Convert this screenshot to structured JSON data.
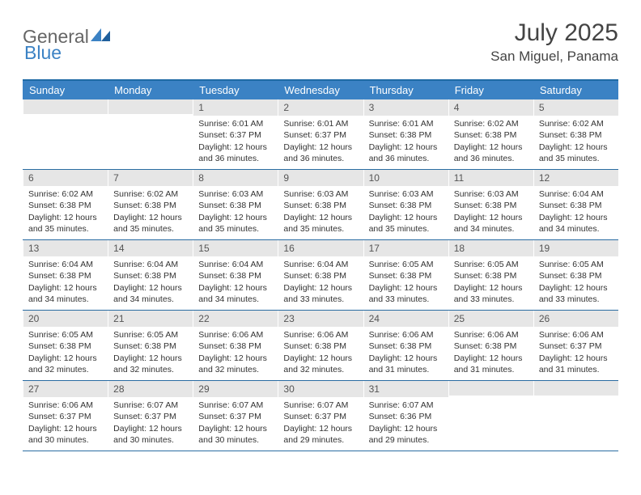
{
  "logo": {
    "word1": "General",
    "word2": "Blue"
  },
  "header": {
    "title": "July 2025",
    "location": "San Miguel, Panama"
  },
  "colors": {
    "brand_blue": "#3b82c4",
    "header_rule": "#1f6aa5",
    "row_divider": "#2a6ca2",
    "daynum_bg": "#e6e6e6",
    "text": "#333333",
    "title_text": "#444444"
  },
  "calendar": {
    "days_of_week": [
      "Sunday",
      "Monday",
      "Tuesday",
      "Wednesday",
      "Thursday",
      "Friday",
      "Saturday"
    ],
    "weeks": [
      [
        null,
        null,
        {
          "n": "1",
          "sunrise": "Sunrise: 6:01 AM",
          "sunset": "Sunset: 6:37 PM",
          "daylight": "Daylight: 12 hours and 36 minutes."
        },
        {
          "n": "2",
          "sunrise": "Sunrise: 6:01 AM",
          "sunset": "Sunset: 6:37 PM",
          "daylight": "Daylight: 12 hours and 36 minutes."
        },
        {
          "n": "3",
          "sunrise": "Sunrise: 6:01 AM",
          "sunset": "Sunset: 6:38 PM",
          "daylight": "Daylight: 12 hours and 36 minutes."
        },
        {
          "n": "4",
          "sunrise": "Sunrise: 6:02 AM",
          "sunset": "Sunset: 6:38 PM",
          "daylight": "Daylight: 12 hours and 36 minutes."
        },
        {
          "n": "5",
          "sunrise": "Sunrise: 6:02 AM",
          "sunset": "Sunset: 6:38 PM",
          "daylight": "Daylight: 12 hours and 35 minutes."
        }
      ],
      [
        {
          "n": "6",
          "sunrise": "Sunrise: 6:02 AM",
          "sunset": "Sunset: 6:38 PM",
          "daylight": "Daylight: 12 hours and 35 minutes."
        },
        {
          "n": "7",
          "sunrise": "Sunrise: 6:02 AM",
          "sunset": "Sunset: 6:38 PM",
          "daylight": "Daylight: 12 hours and 35 minutes."
        },
        {
          "n": "8",
          "sunrise": "Sunrise: 6:03 AM",
          "sunset": "Sunset: 6:38 PM",
          "daylight": "Daylight: 12 hours and 35 minutes."
        },
        {
          "n": "9",
          "sunrise": "Sunrise: 6:03 AM",
          "sunset": "Sunset: 6:38 PM",
          "daylight": "Daylight: 12 hours and 35 minutes."
        },
        {
          "n": "10",
          "sunrise": "Sunrise: 6:03 AM",
          "sunset": "Sunset: 6:38 PM",
          "daylight": "Daylight: 12 hours and 35 minutes."
        },
        {
          "n": "11",
          "sunrise": "Sunrise: 6:03 AM",
          "sunset": "Sunset: 6:38 PM",
          "daylight": "Daylight: 12 hours and 34 minutes."
        },
        {
          "n": "12",
          "sunrise": "Sunrise: 6:04 AM",
          "sunset": "Sunset: 6:38 PM",
          "daylight": "Daylight: 12 hours and 34 minutes."
        }
      ],
      [
        {
          "n": "13",
          "sunrise": "Sunrise: 6:04 AM",
          "sunset": "Sunset: 6:38 PM",
          "daylight": "Daylight: 12 hours and 34 minutes."
        },
        {
          "n": "14",
          "sunrise": "Sunrise: 6:04 AM",
          "sunset": "Sunset: 6:38 PM",
          "daylight": "Daylight: 12 hours and 34 minutes."
        },
        {
          "n": "15",
          "sunrise": "Sunrise: 6:04 AM",
          "sunset": "Sunset: 6:38 PM",
          "daylight": "Daylight: 12 hours and 34 minutes."
        },
        {
          "n": "16",
          "sunrise": "Sunrise: 6:04 AM",
          "sunset": "Sunset: 6:38 PM",
          "daylight": "Daylight: 12 hours and 33 minutes."
        },
        {
          "n": "17",
          "sunrise": "Sunrise: 6:05 AM",
          "sunset": "Sunset: 6:38 PM",
          "daylight": "Daylight: 12 hours and 33 minutes."
        },
        {
          "n": "18",
          "sunrise": "Sunrise: 6:05 AM",
          "sunset": "Sunset: 6:38 PM",
          "daylight": "Daylight: 12 hours and 33 minutes."
        },
        {
          "n": "19",
          "sunrise": "Sunrise: 6:05 AM",
          "sunset": "Sunset: 6:38 PM",
          "daylight": "Daylight: 12 hours and 33 minutes."
        }
      ],
      [
        {
          "n": "20",
          "sunrise": "Sunrise: 6:05 AM",
          "sunset": "Sunset: 6:38 PM",
          "daylight": "Daylight: 12 hours and 32 minutes."
        },
        {
          "n": "21",
          "sunrise": "Sunrise: 6:05 AM",
          "sunset": "Sunset: 6:38 PM",
          "daylight": "Daylight: 12 hours and 32 minutes."
        },
        {
          "n": "22",
          "sunrise": "Sunrise: 6:06 AM",
          "sunset": "Sunset: 6:38 PM",
          "daylight": "Daylight: 12 hours and 32 minutes."
        },
        {
          "n": "23",
          "sunrise": "Sunrise: 6:06 AM",
          "sunset": "Sunset: 6:38 PM",
          "daylight": "Daylight: 12 hours and 32 minutes."
        },
        {
          "n": "24",
          "sunrise": "Sunrise: 6:06 AM",
          "sunset": "Sunset: 6:38 PM",
          "daylight": "Daylight: 12 hours and 31 minutes."
        },
        {
          "n": "25",
          "sunrise": "Sunrise: 6:06 AM",
          "sunset": "Sunset: 6:38 PM",
          "daylight": "Daylight: 12 hours and 31 minutes."
        },
        {
          "n": "26",
          "sunrise": "Sunrise: 6:06 AM",
          "sunset": "Sunset: 6:37 PM",
          "daylight": "Daylight: 12 hours and 31 minutes."
        }
      ],
      [
        {
          "n": "27",
          "sunrise": "Sunrise: 6:06 AM",
          "sunset": "Sunset: 6:37 PM",
          "daylight": "Daylight: 12 hours and 30 minutes."
        },
        {
          "n": "28",
          "sunrise": "Sunrise: 6:07 AM",
          "sunset": "Sunset: 6:37 PM",
          "daylight": "Daylight: 12 hours and 30 minutes."
        },
        {
          "n": "29",
          "sunrise": "Sunrise: 6:07 AM",
          "sunset": "Sunset: 6:37 PM",
          "daylight": "Daylight: 12 hours and 30 minutes."
        },
        {
          "n": "30",
          "sunrise": "Sunrise: 6:07 AM",
          "sunset": "Sunset: 6:37 PM",
          "daylight": "Daylight: 12 hours and 29 minutes."
        },
        {
          "n": "31",
          "sunrise": "Sunrise: 6:07 AM",
          "sunset": "Sunset: 6:36 PM",
          "daylight": "Daylight: 12 hours and 29 minutes."
        },
        null,
        null
      ]
    ]
  }
}
